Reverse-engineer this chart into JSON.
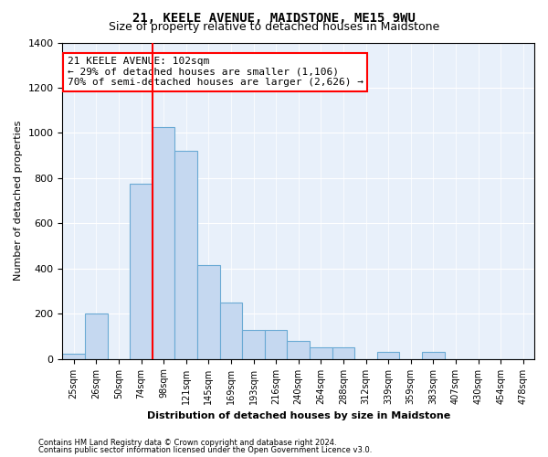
{
  "title": "21, KEELE AVENUE, MAIDSTONE, ME15 9WU",
  "subtitle": "Size of property relative to detached houses in Maidstone",
  "xlabel": "Distribution of detached houses by size in Maidstone",
  "ylabel": "Number of detached properties",
  "bar_color": "#c5d8f0",
  "bar_edge_color": "#6aaad4",
  "background_color": "#e8f0fa",
  "grid_color": "#ffffff",
  "categories": [
    "25sqm",
    "26sqm",
    "50sqm",
    "74sqm",
    "98sqm",
    "121sqm",
    "145sqm",
    "169sqm",
    "193sqm",
    "216sqm",
    "240sqm",
    "264sqm",
    "288sqm",
    "312sqm",
    "339sqm",
    "359sqm",
    "383sqm",
    "407sqm",
    "430sqm",
    "454sqm",
    "478sqm"
  ],
  "values": [
    25,
    200,
    0,
    775,
    1025,
    920,
    415,
    250,
    130,
    130,
    80,
    50,
    50,
    0,
    30,
    0,
    30,
    0,
    0,
    0,
    0
  ],
  "marker_bin_index": 4,
  "annotation_text": "21 KEELE AVENUE: 102sqm\n← 29% of detached houses are smaller (1,106)\n70% of semi-detached houses are larger (2,626) →",
  "footer1": "Contains HM Land Registry data © Crown copyright and database right 2024.",
  "footer2": "Contains public sector information licensed under the Open Government Licence v3.0.",
  "ylim": [
    0,
    1400
  ],
  "yticks": [
    0,
    200,
    400,
    600,
    800,
    1000,
    1200,
    1400
  ]
}
